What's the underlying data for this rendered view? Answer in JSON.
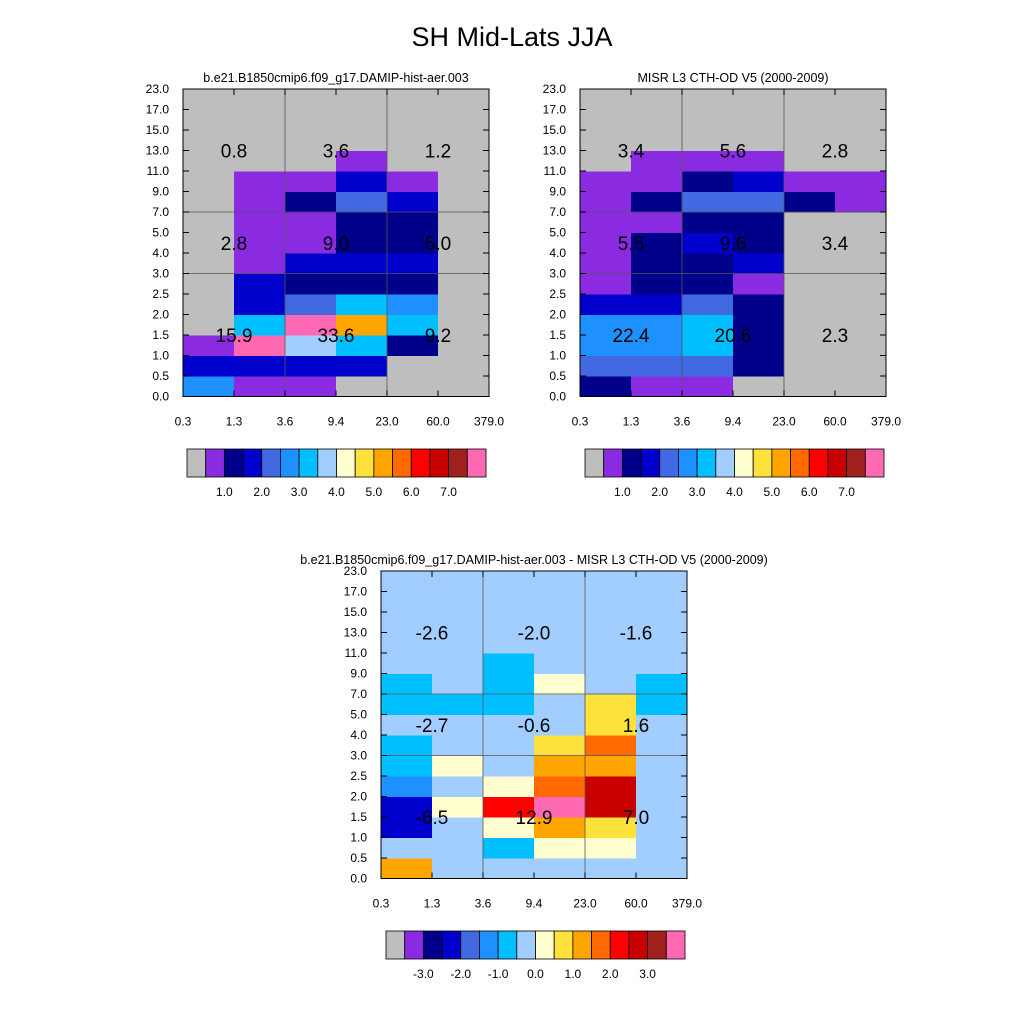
{
  "figure_title": "SH Mid-Lats JJA",
  "colors": {
    "missing": "#BEBEBE",
    "frame": "#000000",
    "grid_line": "#555555",
    "background": "#FFFFFF"
  },
  "palette": [
    "#BEBEBE",
    "#8A2BE2",
    "#00008B",
    "#0000CD",
    "#4169E1",
    "#1E90FF",
    "#00BFFF",
    "#A2CDFF",
    "#FFFFD0",
    "#FFE13C",
    "#FFA500",
    "#FF6A00",
    "#FF0000",
    "#C80000",
    "#A0201E",
    "#FF69B4"
  ],
  "chart_data": [
    {
      "id": "model",
      "type": "heatmap",
      "title": "b.e21.B1850cmip6.f09_g17.DAMIP-hist-aer.003",
      "xlabel": "",
      "ylabel": "",
      "x_ticks": [
        "0.3",
        "1.3",
        "3.6",
        "9.4",
        "23.0",
        "60.0",
        "379.0"
      ],
      "y_ticks": [
        "0.0",
        "0.5",
        "1.0",
        "1.5",
        "2.0",
        "2.5",
        "3.0",
        "4.0",
        "5.0",
        "7.0",
        "9.0",
        "11.0",
        "13.0",
        "15.0",
        "17.0",
        "23.0"
      ],
      "grid": {
        "x_bounds": [
          2,
          4
        ],
        "y_bounds": [
          6,
          9
        ]
      },
      "cells": [
        [
          5,
          1,
          1,
          0,
          0,
          0
        ],
        [
          3,
          3,
          3,
          3,
          0,
          0
        ],
        [
          1,
          15,
          7,
          6,
          2,
          0
        ],
        [
          0,
          6,
          15,
          10,
          6,
          0
        ],
        [
          0,
          3,
          4,
          6,
          5,
          0
        ],
        [
          0,
          3,
          2,
          2,
          2,
          0
        ],
        [
          0,
          1,
          3,
          3,
          3,
          0
        ],
        [
          0,
          1,
          1,
          2,
          2,
          0
        ],
        [
          0,
          1,
          1,
          2,
          2,
          0
        ],
        [
          0,
          1,
          2,
          4,
          3,
          0
        ],
        [
          0,
          1,
          1,
          3,
          1,
          0
        ],
        [
          0,
          0,
          0,
          1,
          0,
          0
        ],
        [
          0,
          0,
          0,
          0,
          0,
          0
        ],
        [
          0,
          0,
          0,
          0,
          0,
          0
        ],
        [
          0,
          0,
          0,
          0,
          0,
          0
        ]
      ],
      "box_totals": [
        {
          "label": "0.8",
          "col": 0,
          "row": 2
        },
        {
          "label": "3.6",
          "col": 1,
          "row": 2
        },
        {
          "label": "1.2",
          "col": 2,
          "row": 2
        },
        {
          "label": "2.8",
          "col": 0,
          "row": 1
        },
        {
          "label": "9.0",
          "col": 1,
          "row": 1
        },
        {
          "label": "5.0",
          "col": 2,
          "row": 1
        },
        {
          "label": "15.9",
          "col": 0,
          "row": 0
        },
        {
          "label": "33.6",
          "col": 1,
          "row": 0
        },
        {
          "label": "9.2",
          "col": 2,
          "row": 0
        }
      ],
      "colorbar": {
        "labels": [
          "1.0",
          "2.0",
          "3.0",
          "4.0",
          "5.0",
          "6.0",
          "7.0"
        ],
        "range": [
          0,
          7.5
        ]
      }
    },
    {
      "id": "obs",
      "type": "heatmap",
      "title": "MISR L3 CTH-OD V5 (2000-2009)",
      "xlabel": "",
      "ylabel": "",
      "x_ticks": [
        "0.3",
        "1.3",
        "3.6",
        "9.4",
        "23.0",
        "60.0",
        "379.0"
      ],
      "y_ticks": [
        "0.0",
        "0.5",
        "1.0",
        "1.5",
        "2.0",
        "2.5",
        "3.0",
        "4.0",
        "5.0",
        "7.0",
        "9.0",
        "11.0",
        "13.0",
        "15.0",
        "17.0",
        "23.0"
      ],
      "grid": {
        "x_bounds": [
          2,
          4
        ],
        "y_bounds": [
          6,
          9
        ]
      },
      "cells": [
        [
          2,
          1,
          1,
          0,
          0,
          0
        ],
        [
          4,
          4,
          4,
          2,
          0,
          0
        ],
        [
          5,
          5,
          6,
          2,
          0,
          0
        ],
        [
          5,
          5,
          6,
          2,
          0,
          0
        ],
        [
          3,
          3,
          4,
          2,
          0,
          0
        ],
        [
          1,
          2,
          2,
          1,
          0,
          0
        ],
        [
          1,
          2,
          2,
          3,
          0,
          0
        ],
        [
          1,
          2,
          3,
          2,
          0,
          0
        ],
        [
          1,
          1,
          2,
          2,
          0,
          0
        ],
        [
          1,
          2,
          4,
          4,
          2,
          1
        ],
        [
          1,
          1,
          2,
          3,
          1,
          1
        ],
        [
          0,
          1,
          1,
          1,
          0,
          0
        ],
        [
          0,
          0,
          0,
          0,
          0,
          0
        ],
        [
          0,
          0,
          0,
          0,
          0,
          0
        ],
        [
          0,
          0,
          0,
          0,
          0,
          0
        ]
      ],
      "box_totals": [
        {
          "label": "3.4",
          "col": 0,
          "row": 2
        },
        {
          "label": "5.6",
          "col": 1,
          "row": 2
        },
        {
          "label": "2.8",
          "col": 2,
          "row": 2
        },
        {
          "label": "5.5",
          "col": 0,
          "row": 1
        },
        {
          "label": "9.6",
          "col": 1,
          "row": 1
        },
        {
          "label": "3.4",
          "col": 2,
          "row": 1
        },
        {
          "label": "22.4",
          "col": 0,
          "row": 0
        },
        {
          "label": "20.6",
          "col": 1,
          "row": 0
        },
        {
          "label": "2.3",
          "col": 2,
          "row": 0
        }
      ],
      "colorbar": {
        "labels": [
          "1.0",
          "2.0",
          "3.0",
          "4.0",
          "5.0",
          "6.0",
          "7.0"
        ],
        "range": [
          0,
          7.5
        ]
      }
    },
    {
      "id": "diff",
      "type": "heatmap",
      "title": "b.e21.B1850cmip6.f09_g17.DAMIP-hist-aer.003 - MISR L3 CTH-OD V5 (2000-2009)",
      "xlabel": "",
      "ylabel": "",
      "x_ticks": [
        "0.3",
        "1.3",
        "3.6",
        "9.4",
        "23.0",
        "60.0",
        "379.0"
      ],
      "y_ticks": [
        "0.0",
        "0.5",
        "1.0",
        "1.5",
        "2.0",
        "2.5",
        "3.0",
        "4.0",
        "5.0",
        "7.0",
        "9.0",
        "11.0",
        "13.0",
        "15.0",
        "17.0",
        "23.0"
      ],
      "grid": {
        "x_bounds": [
          2,
          4
        ],
        "y_bounds": [
          6,
          9
        ]
      },
      "cells": [
        [
          10,
          7,
          7,
          7,
          7,
          7
        ],
        [
          7,
          7,
          6,
          8,
          8,
          7
        ],
        [
          3,
          7,
          8,
          10,
          9,
          7
        ],
        [
          3,
          8,
          12,
          15,
          13,
          7
        ],
        [
          5,
          7,
          8,
          11,
          13,
          7
        ],
        [
          6,
          8,
          7,
          10,
          10,
          7
        ],
        [
          6,
          7,
          7,
          9,
          11,
          7
        ],
        [
          7,
          7,
          7,
          7,
          9,
          7
        ],
        [
          6,
          6,
          6,
          7,
          9,
          6
        ],
        [
          6,
          7,
          6,
          8,
          7,
          6
        ],
        [
          7,
          7,
          6,
          7,
          7,
          7
        ],
        [
          7,
          7,
          7,
          7,
          7,
          7
        ],
        [
          7,
          7,
          7,
          7,
          7,
          7
        ],
        [
          7,
          7,
          7,
          7,
          7,
          7
        ],
        [
          7,
          7,
          7,
          7,
          7,
          7
        ]
      ],
      "box_totals": [
        {
          "label": "-2.6",
          "col": 0,
          "row": 2
        },
        {
          "label": "-2.0",
          "col": 1,
          "row": 2
        },
        {
          "label": "-1.6",
          "col": 2,
          "row": 2
        },
        {
          "label": "-2.7",
          "col": 0,
          "row": 1
        },
        {
          "label": "-0.6",
          "col": 1,
          "row": 1
        },
        {
          "label": "1.6",
          "col": 2,
          "row": 1
        },
        {
          "label": "-6.5",
          "col": 0,
          "row": 0
        },
        {
          "label": "12.9",
          "col": 1,
          "row": 0
        },
        {
          "label": "7.0",
          "col": 2,
          "row": 0
        }
      ],
      "colorbar": {
        "labels": [
          "-3.0",
          "-2.0",
          "-1.0",
          "0.0",
          "1.0",
          "2.0",
          "3.0"
        ],
        "range": [
          -3.5,
          3.5
        ]
      }
    }
  ]
}
